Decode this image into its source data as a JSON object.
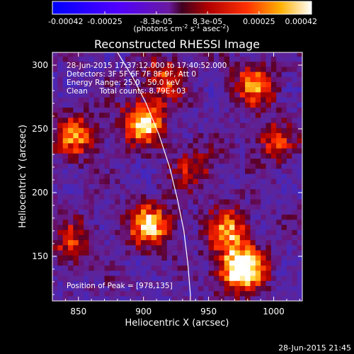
{
  "colorbar": {
    "tick_labels": [
      "-0.00042",
      "-0.00025",
      "-8.3e-05",
      "8.3e-05",
      "0.00025",
      "0.00042"
    ],
    "units_main": "(photons cm",
    "units_exp1": "-2",
    "units_s": " s",
    "units_exp2": "-1",
    "units_asec": " asec",
    "units_exp3": "-2",
    "units_close": ")"
  },
  "chart_data": {
    "type": "heatmap",
    "title": "Reconstructed RHESSI Image",
    "xlabel": "Heliocentric X (arcsec)",
    "ylabel": "Heliocentric Y (arcsec)",
    "xlim": [
      830,
      1022
    ],
    "ylim": [
      115,
      310
    ],
    "x_ticks": [
      850,
      900,
      950,
      1000
    ],
    "y_ticks": [
      150,
      200,
      250,
      300
    ],
    "value_range": [
      -0.00042,
      0.00042
    ],
    "colormap": "rhessi-blue-purple-red-yellow-white",
    "annotations": [
      "28-Jun-2015 17:37:12.000 to 17:40:52.000",
      "Detectors: 3F 5F 6F 7F 8F 9F, Att 0",
      "Energy Range: 25.0 - 50.0 keV",
      "Clean     Total counts: 8.79E+03"
    ],
    "peak_label": "Position of Peak = [978,135]",
    "peak": [
      978,
      135
    ],
    "hot_regions": [
      {
        "x": 900,
        "y": 255,
        "level": 0.75
      },
      {
        "x": 848,
        "y": 245,
        "level": 0.55
      },
      {
        "x": 915,
        "y": 290,
        "level": 0.45
      },
      {
        "x": 905,
        "y": 175,
        "level": 0.7
      },
      {
        "x": 975,
        "y": 140,
        "level": 1.0
      },
      {
        "x": 965,
        "y": 170,
        "level": 0.6
      },
      {
        "x": 985,
        "y": 285,
        "level": 0.55
      },
      {
        "x": 1000,
        "y": 240,
        "level": 0.4
      },
      {
        "x": 845,
        "y": 160,
        "level": 0.4
      },
      {
        "x": 940,
        "y": 220,
        "level": 0.35
      }
    ],
    "limb": [
      [
        880,
        310
      ],
      [
        892,
        290
      ],
      [
        902,
        270
      ],
      [
        912,
        245
      ],
      [
        920,
        220
      ],
      [
        926,
        195
      ],
      [
        931,
        170
      ],
      [
        934,
        145
      ],
      [
        936,
        120
      ],
      [
        936,
        115
      ]
    ],
    "grid": false,
    "footer": "28-Jun-2015 21:45"
  }
}
